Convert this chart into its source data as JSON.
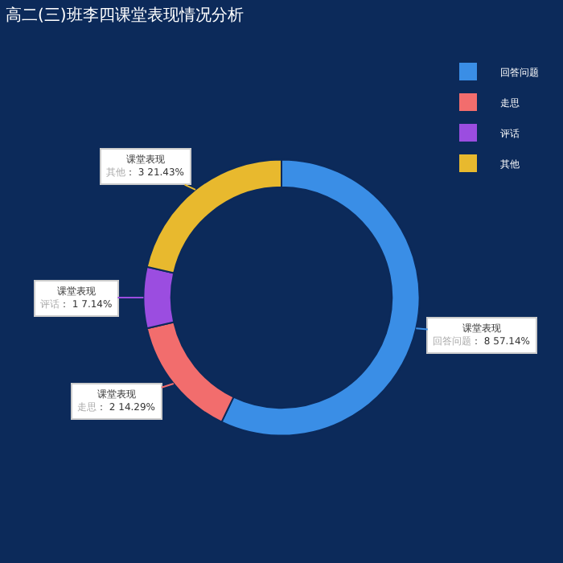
{
  "chart_data": {
    "type": "donut",
    "title": "高二(三)班李四课堂表现情况分析",
    "categories": [
      "回答问题",
      "走思",
      "评话",
      "其他"
    ],
    "series": [
      {
        "name": "课堂表现",
        "values": [
          8,
          2,
          1,
          3
        ],
        "colors": [
          "#3a8ee6",
          "#f26d6d",
          "#9b4de0",
          "#e8b92e"
        ],
        "value_labels": [
          "： 8 57.14%",
          "： 2 14.29%",
          "： 1 7.14%",
          "： 3 21.43%"
        ]
      }
    ],
    "legend": "top right"
  }
}
